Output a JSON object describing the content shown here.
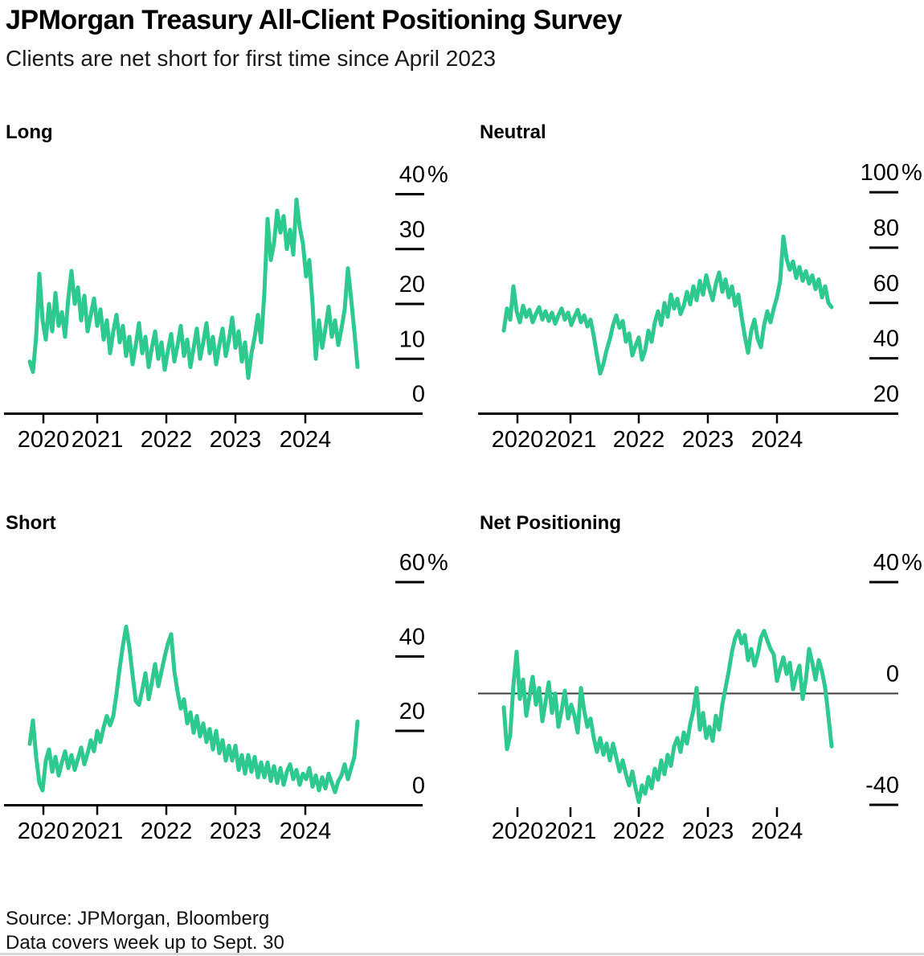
{
  "page": {
    "title": "JPMorgan Treasury All-Client Positioning Survey",
    "subtitle": "Clients are net short for first time since April 2023",
    "source_line1": "Source: JPMorgan, Bloomberg",
    "source_line2": "Data covers week up to Sept. 30"
  },
  "colors": {
    "line": "#2EC98F",
    "axis": "#000000",
    "zero_line": "#3c3c3c",
    "text": "#000000",
    "bottom_rule": "#d8d8d8"
  },
  "chart_data": [
    {
      "id": "long",
      "title": "Long",
      "type": "line",
      "unit": "%",
      "x_tick_labels": [
        "2020",
        "2021",
        "2022",
        "2023",
        "2024"
      ],
      "y_ticks": [
        {
          "label": "40%",
          "value": 40,
          "dash": true
        },
        {
          "label": "30",
          "value": 30,
          "dash": true
        },
        {
          "label": "20",
          "value": 20,
          "dash": true
        },
        {
          "label": "10",
          "value": 10,
          "dash": true
        },
        {
          "label": "0",
          "value": 0,
          "dash": false
        }
      ],
      "ylim": [
        0,
        40
      ],
      "values": [
        9.5,
        7.6,
        14,
        25.5,
        17,
        13.5,
        20,
        15,
        22,
        16,
        18.5,
        14,
        21,
        26,
        20,
        23,
        17,
        21.5,
        15,
        18,
        21,
        16,
        19,
        13.5,
        17,
        11,
        15,
        18,
        13,
        16,
        10.5,
        14,
        9,
        12.5,
        16.5,
        11,
        14,
        8.5,
        12,
        15,
        10,
        13,
        8,
        11.5,
        14.5,
        9.5,
        12.5,
        16,
        10.5,
        13.5,
        8.5,
        12,
        15.5,
        10,
        13,
        16.5,
        11,
        14,
        9,
        12.5,
        15.5,
        10.5,
        13.5,
        17.5,
        12,
        15,
        9.5,
        13,
        6.5,
        11,
        14,
        18,
        13,
        22,
        35.5,
        28,
        31,
        37,
        33,
        36,
        30,
        33.5,
        29,
        39,
        34,
        31,
        25,
        28,
        20,
        10,
        17,
        12,
        15.5,
        19.5,
        14,
        17,
        12.5,
        15.5,
        19,
        26.5,
        21,
        15,
        8.5
      ]
    },
    {
      "id": "neutral",
      "title": "Neutral",
      "type": "line",
      "unit": "%",
      "x_tick_labels": [
        "2020",
        "2021",
        "2022",
        "2023",
        "2024"
      ],
      "y_ticks": [
        {
          "label": "100%",
          "value": 100,
          "dash": true
        },
        {
          "label": "80",
          "value": 80,
          "dash": true
        },
        {
          "label": "60",
          "value": 60,
          "dash": true
        },
        {
          "label": "40",
          "value": 40,
          "dash": true
        },
        {
          "label": "20",
          "value": 20,
          "dash": false
        }
      ],
      "ylim": [
        20,
        100
      ],
      "values": [
        50,
        58,
        54,
        66,
        57,
        53,
        59,
        55,
        57.5,
        53,
        56,
        58.5,
        54,
        57,
        53.5,
        56.5,
        52.5,
        55.5,
        58,
        54,
        56.5,
        52,
        55,
        57.5,
        53,
        55.5,
        51.5,
        54,
        48,
        41,
        34.5,
        38,
        43,
        47,
        52,
        55.5,
        51,
        53.5,
        46,
        49,
        41,
        44.5,
        47.5,
        39.5,
        43,
        50,
        46,
        53,
        57,
        52,
        60,
        55,
        63,
        58,
        61.5,
        56,
        59,
        64,
        59.5,
        66,
        61,
        68,
        63,
        70,
        65,
        61,
        67,
        71,
        64,
        68.5,
        62,
        66,
        59,
        63,
        55,
        48,
        42,
        50,
        54,
        47,
        44,
        52,
        57,
        53,
        58,
        62,
        68,
        84,
        76,
        72,
        75,
        69,
        73,
        68,
        71.5,
        67,
        70,
        65,
        68.5,
        62,
        66,
        60,
        58.5
      ]
    },
    {
      "id": "short",
      "title": "Short",
      "type": "line",
      "unit": "%",
      "x_tick_labels": [
        "2020",
        "2021",
        "2022",
        "2023",
        "2024"
      ],
      "y_ticks": [
        {
          "label": "60%",
          "value": 60,
          "dash": true
        },
        {
          "label": "40",
          "value": 40,
          "dash": true
        },
        {
          "label": "20",
          "value": 20,
          "dash": true
        },
        {
          "label": "0",
          "value": 0,
          "dash": false
        }
      ],
      "ylim": [
        0,
        60
      ],
      "values": [
        16.5,
        22.8,
        13,
        6,
        4,
        12,
        15,
        9,
        13,
        8,
        11.5,
        14.5,
        10,
        13.5,
        9.5,
        12.5,
        15.5,
        11,
        14,
        17.5,
        14.5,
        20,
        17,
        21,
        24,
        21.5,
        24,
        30,
        37,
        43,
        48,
        42.5,
        35,
        28,
        27,
        31,
        35.5,
        28.5,
        33,
        38,
        32,
        36,
        40,
        43.5,
        46,
        36,
        30.5,
        26,
        28.5,
        22,
        25,
        19.5,
        24,
        18.5,
        22,
        17,
        20.5,
        15,
        20,
        14,
        17.5,
        12,
        16,
        12,
        16,
        9.5,
        13.5,
        8.5,
        13.5,
        9,
        13,
        7.5,
        11.5,
        7.5,
        11.5,
        6.5,
        10.5,
        6,
        10,
        5.5,
        9,
        11,
        7,
        9.5,
        5.5,
        8.5,
        7,
        10,
        5,
        8,
        4,
        7.5,
        4.5,
        8.5,
        6,
        3.5,
        6.5,
        8,
        11,
        7,
        10,
        13,
        22.5
      ]
    },
    {
      "id": "net-positioning",
      "title": "Net Positioning",
      "type": "line",
      "unit": "%",
      "x_tick_labels": [
        "2020",
        "2021",
        "2022",
        "2023",
        "2024"
      ],
      "y_ticks": [
        {
          "label": "40%",
          "value": 40,
          "dash": true
        },
        {
          "label": "0",
          "value": 0,
          "dash": false
        },
        {
          "label": "-40",
          "value": -40,
          "dash": true
        }
      ],
      "ylim": [
        -60,
        40
      ],
      "zero_line": true,
      "values": [
        -5,
        -20,
        -15,
        3,
        15,
        -2,
        5,
        -8,
        -1,
        6,
        -4,
        2,
        -10,
        -3,
        4,
        -7,
        0,
        -12,
        -6,
        1,
        -9,
        -4,
        -8,
        -14,
        2,
        -6,
        -12,
        -9,
        -16,
        -21,
        -16,
        -22,
        -18,
        -24,
        -18,
        -23,
        -28,
        -24,
        -29,
        -33,
        -28,
        -34,
        -39,
        -33,
        -36,
        -30,
        -34,
        -27,
        -31,
        -24,
        -29,
        -22,
        -26,
        -19,
        -16,
        -21,
        -14,
        -18,
        -11,
        -6,
        2,
        -13,
        -7,
        -16,
        -12,
        -17,
        -8,
        -13,
        -4,
        2,
        8,
        15,
        20,
        22.5,
        18,
        21,
        12,
        16,
        10,
        14,
        20,
        22.5,
        19,
        16,
        14,
        4.5,
        9,
        13,
        7,
        11,
        1.5,
        6.5,
        10,
        -2,
        5,
        16,
        11,
        5,
        12,
        8,
        2,
        -8,
        -19
      ]
    }
  ]
}
